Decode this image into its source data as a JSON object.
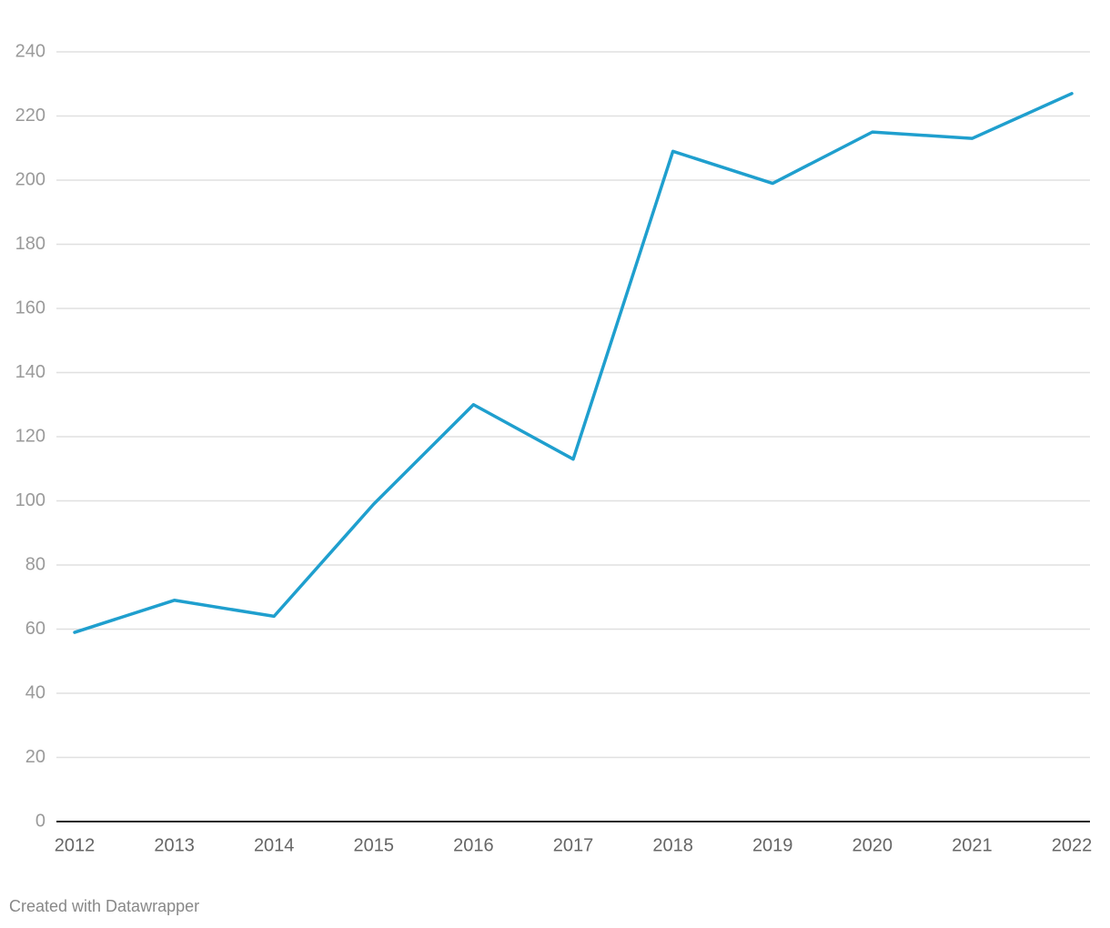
{
  "chart_data": {
    "type": "line",
    "x": [
      2012,
      2013,
      2014,
      2015,
      2016,
      2017,
      2018,
      2019,
      2020,
      2021,
      2022
    ],
    "series": [
      {
        "color": "#1f9fce",
        "values": [
          59,
          69,
          64,
          99,
          130,
          113,
          209,
          199,
          215,
          213,
          227
        ]
      }
    ],
    "xlim": [
      2012,
      2022
    ],
    "xticks": [
      2012,
      2013,
      2014,
      2015,
      2016,
      2017,
      2018,
      2019,
      2020,
      2021,
      2022
    ],
    "ylim": [
      0,
      240
    ],
    "yticks": [
      0,
      20,
      40,
      60,
      80,
      100,
      120,
      140,
      160,
      180,
      200,
      220,
      240
    ],
    "grid": true,
    "footer": "Created with Datawrapper"
  }
}
